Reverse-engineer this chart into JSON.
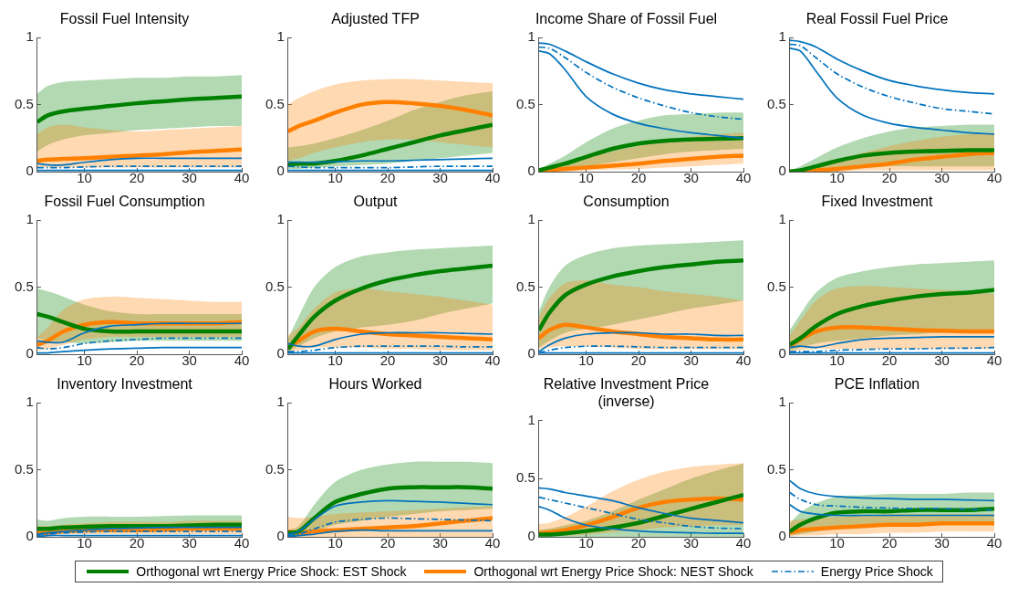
{
  "chart_data": [
    {
      "type": "line",
      "title": "Fossil Fuel Intensity",
      "x": [
        1,
        3,
        6,
        10,
        15,
        20,
        25,
        30,
        35,
        40
      ],
      "xlim": [
        1,
        40
      ],
      "xticks": [
        10,
        20,
        30,
        40
      ],
      "ylim": [
        0,
        1
      ],
      "yticks": [
        0,
        0.5,
        1
      ],
      "legend": "bottom",
      "series": [
        {
          "name": "Orthogonal wrt Energy Price Shock: EST Shock",
          "color": "#008000",
          "line_style": "solid",
          "values": [
            0.37,
            0.42,
            0.45,
            0.47,
            0.49,
            0.51,
            0.525,
            0.54,
            0.55,
            0.56
          ],
          "lower": [
            0.15,
            0.2,
            0.24,
            0.27,
            0.29,
            0.31,
            0.32,
            0.33,
            0.34,
            0.34
          ],
          "upper": [
            0.58,
            0.64,
            0.67,
            0.68,
            0.69,
            0.7,
            0.7,
            0.71,
            0.71,
            0.72
          ]
        },
        {
          "name": "Orthogonal wrt Energy Price Shock: NEST Shock",
          "color": "#ff8000",
          "line_style": "solid",
          "values": [
            0.08,
            0.09,
            0.095,
            0.1,
            0.11,
            0.12,
            0.13,
            0.145,
            0.155,
            0.165
          ],
          "lower": [
            0.03,
            0.03,
            0.03,
            0.03,
            0.03,
            0.03,
            0.03,
            0.03,
            0.03,
            0.03
          ],
          "upper": [
            0.28,
            0.33,
            0.35,
            0.33,
            0.31,
            0.3,
            0.31,
            0.32,
            0.33,
            0.34
          ]
        },
        {
          "name": "Energy Price Shock",
          "color": "#0072bd",
          "line_style": "dashed",
          "values": [
            0.03,
            0.03,
            0.03,
            0.035,
            0.04,
            0.04,
            0.04,
            0.04,
            0.04,
            0.04
          ]
        },
        {
          "color": "#0072bd",
          "line_style": "solid",
          "values": [
            0.01,
            0.01,
            0.01,
            0.01,
            0.01,
            0.01,
            0.01,
            0.01,
            0.01,
            0.01
          ]
        },
        {
          "color": "#0072bd",
          "line_style": "solid",
          "values": [
            0.06,
            0.05,
            0.05,
            0.07,
            0.09,
            0.1,
            0.1,
            0.1,
            0.1,
            0.1
          ]
        }
      ]
    },
    {
      "type": "line",
      "title": "Adjusted TFP",
      "x": [
        1,
        3,
        6,
        10,
        15,
        20,
        25,
        30,
        35,
        40
      ],
      "xlim": [
        1,
        40
      ],
      "xticks": [
        10,
        20,
        30,
        40
      ],
      "ylim": [
        0,
        1
      ],
      "yticks": [
        0,
        0.5,
        1
      ],
      "series": [
        {
          "color": "#008000",
          "line_style": "solid",
          "values": [
            0.05,
            0.06,
            0.06,
            0.08,
            0.12,
            0.17,
            0.22,
            0.27,
            0.31,
            0.35
          ],
          "lower": [
            0.02,
            0.02,
            0.03,
            0.04,
            0.05,
            0.06,
            0.08,
            0.1,
            0.12,
            0.14
          ],
          "upper": [
            0.18,
            0.19,
            0.21,
            0.25,
            0.31,
            0.38,
            0.46,
            0.52,
            0.57,
            0.6
          ]
        },
        {
          "color": "#ff8000",
          "line_style": "solid",
          "values": [
            0.3,
            0.34,
            0.38,
            0.44,
            0.5,
            0.52,
            0.51,
            0.49,
            0.46,
            0.42
          ],
          "lower": [
            0.08,
            0.1,
            0.14,
            0.18,
            0.22,
            0.24,
            0.24,
            0.22,
            0.2,
            0.18
          ],
          "upper": [
            0.5,
            0.55,
            0.6,
            0.65,
            0.68,
            0.69,
            0.69,
            0.68,
            0.67,
            0.66
          ]
        },
        {
          "color": "#0072bd",
          "line_style": "dashed",
          "values": [
            0.04,
            0.035,
            0.03,
            0.03,
            0.03,
            0.03,
            0.035,
            0.04,
            0.04,
            0.04
          ]
        },
        {
          "color": "#0072bd",
          "line_style": "solid",
          "values": [
            0.01,
            0.01,
            0.01,
            0.01,
            0.01,
            0.01,
            0.01,
            0.01,
            0.01,
            0.01
          ]
        },
        {
          "color": "#0072bd",
          "line_style": "solid",
          "values": [
            0.07,
            0.07,
            0.07,
            0.075,
            0.08,
            0.08,
            0.085,
            0.09,
            0.095,
            0.1
          ]
        }
      ]
    },
    {
      "type": "line",
      "title": "Income Share of Fossil Fuel",
      "x": [
        1,
        3,
        6,
        10,
        15,
        20,
        25,
        30,
        35,
        40
      ],
      "xlim": [
        1,
        40
      ],
      "xticks": [
        10,
        20,
        30,
        40
      ],
      "ylim": [
        0,
        1
      ],
      "yticks": [
        0,
        0.5,
        1
      ],
      "series": [
        {
          "color": "#008000",
          "line_style": "solid",
          "values": [
            0.01,
            0.03,
            0.06,
            0.11,
            0.17,
            0.21,
            0.23,
            0.24,
            0.245,
            0.25
          ],
          "lower": [
            0,
            0.01,
            0.02,
            0.04,
            0.07,
            0.1,
            0.13,
            0.15,
            0.16,
            0.17
          ],
          "upper": [
            0.02,
            0.06,
            0.12,
            0.22,
            0.32,
            0.38,
            0.42,
            0.43,
            0.44,
            0.44
          ]
        },
        {
          "color": "#ff8000",
          "line_style": "solid",
          "values": [
            0,
            0.01,
            0.02,
            0.03,
            0.045,
            0.06,
            0.08,
            0.095,
            0.11,
            0.12
          ],
          "lower": [
            0,
            0,
            0,
            0.01,
            0.015,
            0.02,
            0.03,
            0.04,
            0.05,
            0.06
          ],
          "upper": [
            0.01,
            0.03,
            0.06,
            0.1,
            0.15,
            0.19,
            0.23,
            0.26,
            0.28,
            0.29
          ]
        },
        {
          "color": "#0072bd",
          "line_style": "dashed",
          "values": [
            0.93,
            0.92,
            0.85,
            0.74,
            0.63,
            0.55,
            0.49,
            0.44,
            0.41,
            0.39
          ]
        },
        {
          "color": "#0072bd",
          "line_style": "solid",
          "values": [
            0.9,
            0.88,
            0.76,
            0.56,
            0.43,
            0.36,
            0.32,
            0.29,
            0.27,
            0.25
          ]
        },
        {
          "color": "#0072bd",
          "line_style": "solid",
          "values": [
            0.96,
            0.95,
            0.9,
            0.82,
            0.73,
            0.66,
            0.61,
            0.58,
            0.56,
            0.54
          ]
        }
      ]
    },
    {
      "type": "line",
      "title": "Real Fossil Fuel Price",
      "x": [
        1,
        3,
        6,
        10,
        15,
        20,
        25,
        30,
        35,
        40
      ],
      "xlim": [
        1,
        40
      ],
      "xticks": [
        10,
        20,
        30,
        40
      ],
      "ylim": [
        0,
        1
      ],
      "yticks": [
        0,
        0.5,
        1
      ],
      "series": [
        {
          "color": "#008000",
          "line_style": "solid",
          "values": [
            0,
            0.01,
            0.04,
            0.08,
            0.12,
            0.14,
            0.15,
            0.155,
            0.16,
            0.16
          ],
          "lower": [
            0,
            0,
            0.01,
            0.02,
            0.03,
            0.04,
            0.04,
            0.04,
            0.04,
            0.04
          ],
          "upper": [
            0.01,
            0.04,
            0.1,
            0.18,
            0.25,
            0.3,
            0.33,
            0.34,
            0.35,
            0.35
          ]
        },
        {
          "color": "#ff8000",
          "line_style": "solid",
          "values": [
            0,
            0.005,
            0.01,
            0.02,
            0.04,
            0.06,
            0.09,
            0.11,
            0.13,
            0.14
          ],
          "lower": [
            0,
            0,
            0,
            0,
            0.01,
            0.01,
            0.01,
            0.01,
            0.01,
            0.01
          ],
          "upper": [
            0.01,
            0.02,
            0.05,
            0.09,
            0.14,
            0.19,
            0.23,
            0.26,
            0.28,
            0.29
          ]
        },
        {
          "color": "#0072bd",
          "line_style": "dashed",
          "values": [
            0.95,
            0.94,
            0.85,
            0.73,
            0.63,
            0.56,
            0.51,
            0.47,
            0.45,
            0.43
          ]
        },
        {
          "color": "#0072bd",
          "line_style": "solid",
          "values": [
            0.92,
            0.9,
            0.75,
            0.55,
            0.42,
            0.36,
            0.33,
            0.31,
            0.29,
            0.28
          ]
        },
        {
          "color": "#0072bd",
          "line_style": "solid",
          "values": [
            0.98,
            0.97,
            0.93,
            0.84,
            0.75,
            0.68,
            0.64,
            0.61,
            0.59,
            0.58
          ]
        }
      ]
    },
    {
      "type": "line",
      "title": "Fossil Fuel Consumption",
      "x": [
        1,
        3,
        6,
        10,
        15,
        20,
        25,
        30,
        35,
        40
      ],
      "xlim": [
        1,
        40
      ],
      "xticks": [
        10,
        20,
        30,
        40
      ],
      "ylim": [
        0,
        1
      ],
      "yticks": [
        0,
        0.5,
        1
      ],
      "series": [
        {
          "color": "#008000",
          "line_style": "solid",
          "values": [
            0.3,
            0.28,
            0.24,
            0.19,
            0.17,
            0.17,
            0.17,
            0.17,
            0.17,
            0.17
          ],
          "lower": [
            0.12,
            0.1,
            0.09,
            0.08,
            0.09,
            0.1,
            0.1,
            0.1,
            0.1,
            0.1
          ],
          "upper": [
            0.49,
            0.47,
            0.43,
            0.37,
            0.32,
            0.3,
            0.3,
            0.3,
            0.3,
            0.3
          ]
        },
        {
          "color": "#ff8000",
          "line_style": "solid",
          "values": [
            0.07,
            0.1,
            0.17,
            0.22,
            0.24,
            0.23,
            0.23,
            0.23,
            0.23,
            0.24
          ],
          "lower": [
            0.03,
            0.04,
            0.07,
            0.11,
            0.13,
            0.13,
            0.13,
            0.13,
            0.13,
            0.13
          ],
          "upper": [
            0.13,
            0.2,
            0.33,
            0.41,
            0.43,
            0.42,
            0.41,
            0.4,
            0.39,
            0.39
          ]
        },
        {
          "color": "#0072bd",
          "line_style": "dashed",
          "values": [
            0.05,
            0.04,
            0.05,
            0.08,
            0.1,
            0.11,
            0.12,
            0.12,
            0.12,
            0.12
          ]
        },
        {
          "color": "#0072bd",
          "line_style": "solid",
          "values": [
            0.01,
            0.01,
            0.02,
            0.03,
            0.04,
            0.045,
            0.05,
            0.05,
            0.05,
            0.05
          ]
        },
        {
          "color": "#0072bd",
          "line_style": "solid",
          "values": [
            0.1,
            0.09,
            0.09,
            0.16,
            0.21,
            0.22,
            0.23,
            0.23,
            0.23,
            0.23
          ]
        }
      ]
    },
    {
      "type": "line",
      "title": "Output",
      "x": [
        1,
        3,
        6,
        10,
        15,
        20,
        25,
        30,
        35,
        40
      ],
      "xlim": [
        1,
        40
      ],
      "xticks": [
        10,
        20,
        30,
        40
      ],
      "ylim": [
        0,
        1
      ],
      "yticks": [
        0,
        0.5,
        1
      ],
      "series": [
        {
          "color": "#008000",
          "line_style": "solid",
          "values": [
            0.04,
            0.14,
            0.28,
            0.4,
            0.49,
            0.55,
            0.59,
            0.62,
            0.64,
            0.66
          ],
          "lower": [
            0.02,
            0.06,
            0.12,
            0.17,
            0.2,
            0.22,
            0.25,
            0.3,
            0.34,
            0.38
          ],
          "upper": [
            0.12,
            0.28,
            0.5,
            0.65,
            0.73,
            0.76,
            0.78,
            0.79,
            0.8,
            0.81
          ]
        },
        {
          "color": "#ff8000",
          "line_style": "solid",
          "values": [
            0.05,
            0.1,
            0.17,
            0.19,
            0.17,
            0.15,
            0.14,
            0.13,
            0.12,
            0.11
          ],
          "lower": [
            0.02,
            0.03,
            0.05,
            0.05,
            0.05,
            0.04,
            0.04,
            0.03,
            0.03,
            0.03
          ],
          "upper": [
            0.14,
            0.2,
            0.34,
            0.46,
            0.49,
            0.47,
            0.45,
            0.43,
            0.4,
            0.37
          ]
        },
        {
          "color": "#0072bd",
          "line_style": "dashed",
          "values": [
            0.02,
            0.02,
            0.03,
            0.05,
            0.06,
            0.06,
            0.06,
            0.06,
            0.055,
            0.055
          ]
        },
        {
          "color": "#0072bd",
          "line_style": "solid",
          "values": [
            0.01,
            0.01,
            0.01,
            0.01,
            0.01,
            0.01,
            0.01,
            0.01,
            0.01,
            0.01
          ]
        },
        {
          "color": "#0072bd",
          "line_style": "solid",
          "values": [
            0.08,
            0.06,
            0.06,
            0.11,
            0.15,
            0.16,
            0.16,
            0.16,
            0.155,
            0.15
          ]
        }
      ]
    },
    {
      "type": "line",
      "title": "Consumption",
      "x": [
        1,
        3,
        6,
        10,
        15,
        20,
        25,
        30,
        35,
        40
      ],
      "xlim": [
        1,
        40
      ],
      "xticks": [
        10,
        20,
        30,
        40
      ],
      "ylim": [
        0,
        1
      ],
      "yticks": [
        0,
        0.5,
        1
      ],
      "series": [
        {
          "color": "#008000",
          "line_style": "solid",
          "values": [
            0.18,
            0.31,
            0.44,
            0.52,
            0.58,
            0.62,
            0.65,
            0.67,
            0.69,
            0.7
          ],
          "lower": [
            0.05,
            0.1,
            0.16,
            0.19,
            0.22,
            0.26,
            0.3,
            0.34,
            0.37,
            0.4
          ],
          "upper": [
            0.32,
            0.5,
            0.66,
            0.74,
            0.79,
            0.81,
            0.82,
            0.83,
            0.84,
            0.85
          ]
        },
        {
          "color": "#ff8000",
          "line_style": "solid",
          "values": [
            0.12,
            0.18,
            0.22,
            0.2,
            0.17,
            0.15,
            0.13,
            0.12,
            0.11,
            0.11
          ],
          "lower": [
            0.04,
            0.05,
            0.06,
            0.06,
            0.05,
            0.04,
            0.04,
            0.04,
            0.04,
            0.04
          ],
          "upper": [
            0.28,
            0.42,
            0.53,
            0.55,
            0.52,
            0.5,
            0.47,
            0.45,
            0.43,
            0.4
          ]
        },
        {
          "color": "#0072bd",
          "line_style": "dashed",
          "values": [
            0.01,
            0.03,
            0.05,
            0.06,
            0.06,
            0.055,
            0.05,
            0.05,
            0.05,
            0.05
          ]
        },
        {
          "color": "#0072bd",
          "line_style": "solid",
          "values": [
            0.01,
            0.01,
            0.01,
            0.01,
            0.01,
            0.01,
            0.01,
            0.01,
            0.01,
            0.01
          ]
        },
        {
          "color": "#0072bd",
          "line_style": "solid",
          "values": [
            0.02,
            0.07,
            0.12,
            0.15,
            0.16,
            0.16,
            0.15,
            0.15,
            0.14,
            0.14
          ]
        }
      ]
    },
    {
      "type": "line",
      "title": "Fixed Investment",
      "x": [
        1,
        3,
        6,
        10,
        15,
        20,
        25,
        30,
        35,
        40
      ],
      "xlim": [
        1,
        40
      ],
      "xticks": [
        10,
        20,
        30,
        40
      ],
      "ylim": [
        0,
        1
      ],
      "yticks": [
        0,
        0.5,
        1
      ],
      "series": [
        {
          "color": "#008000",
          "line_style": "solid",
          "values": [
            0.07,
            0.12,
            0.21,
            0.3,
            0.36,
            0.4,
            0.43,
            0.45,
            0.46,
            0.48
          ],
          "lower": [
            0.03,
            0.05,
            0.08,
            0.1,
            0.12,
            0.14,
            0.15,
            0.16,
            0.16,
            0.17
          ],
          "upper": [
            0.18,
            0.3,
            0.46,
            0.57,
            0.62,
            0.65,
            0.67,
            0.68,
            0.69,
            0.7
          ]
        },
        {
          "color": "#ff8000",
          "line_style": "solid",
          "values": [
            0.06,
            0.11,
            0.17,
            0.2,
            0.2,
            0.19,
            0.18,
            0.175,
            0.17,
            0.17
          ],
          "lower": [
            0.02,
            0.03,
            0.04,
            0.04,
            0.04,
            0.04,
            0.04,
            0.04,
            0.04,
            0.04
          ],
          "upper": [
            0.14,
            0.25,
            0.4,
            0.49,
            0.51,
            0.5,
            0.49,
            0.48,
            0.47,
            0.45
          ]
        },
        {
          "color": "#0072bd",
          "line_style": "dashed",
          "values": [
            0.02,
            0.02,
            0.02,
            0.03,
            0.035,
            0.04,
            0.04,
            0.045,
            0.045,
            0.05
          ]
        },
        {
          "color": "#0072bd",
          "line_style": "solid",
          "values": [
            0.01,
            0.01,
            0.01,
            0.01,
            0.01,
            0.01,
            0.01,
            0.01,
            0.01,
            0.01
          ]
        },
        {
          "color": "#0072bd",
          "line_style": "solid",
          "values": [
            0.05,
            0.06,
            0.05,
            0.08,
            0.11,
            0.12,
            0.125,
            0.13,
            0.13,
            0.13
          ]
        }
      ]
    },
    {
      "type": "line",
      "title": "Inventory Investment",
      "x": [
        1,
        3,
        6,
        10,
        15,
        20,
        25,
        30,
        35,
        40
      ],
      "xlim": [
        1,
        40
      ],
      "xticks": [
        10,
        20,
        30,
        40
      ],
      "ylim": [
        0,
        1
      ],
      "yticks": [
        0,
        0.5,
        1
      ],
      "series": [
        {
          "color": "#008000",
          "line_style": "solid",
          "values": [
            0.06,
            0.06,
            0.07,
            0.075,
            0.08,
            0.08,
            0.08,
            0.085,
            0.09,
            0.09
          ],
          "lower": [
            0.02,
            0.03,
            0.04,
            0.04,
            0.05,
            0.05,
            0.05,
            0.05,
            0.05,
            0.05
          ],
          "upper": [
            0.13,
            0.12,
            0.14,
            0.15,
            0.15,
            0.15,
            0.155,
            0.16,
            0.16,
            0.16
          ]
        },
        {
          "color": "#ff8000",
          "line_style": "solid",
          "values": [
            0.03,
            0.03,
            0.04,
            0.05,
            0.05,
            0.05,
            0.055,
            0.06,
            0.06,
            0.06
          ],
          "lower": [
            0.01,
            0.01,
            0.02,
            0.02,
            0.02,
            0.02,
            0.02,
            0.02,
            0.02,
            0.02
          ],
          "upper": [
            0.08,
            0.08,
            0.09,
            0.1,
            0.11,
            0.11,
            0.11,
            0.12,
            0.12,
            0.12
          ]
        },
        {
          "color": "#0072bd",
          "line_style": "dashed",
          "values": [
            0.01,
            0.02,
            0.03,
            0.035,
            0.04,
            0.04,
            0.04,
            0.04,
            0.04,
            0.04
          ]
        },
        {
          "color": "#0072bd",
          "line_style": "solid",
          "values": [
            0,
            0.01,
            0.01,
            0.01,
            0.01,
            0.01,
            0.01,
            0.01,
            0.01,
            0.01
          ]
        },
        {
          "color": "#0072bd",
          "line_style": "solid",
          "values": [
            0.02,
            0.03,
            0.04,
            0.05,
            0.06,
            0.065,
            0.07,
            0.07,
            0.07,
            0.07
          ]
        }
      ]
    },
    {
      "type": "line",
      "title": "Hours Worked",
      "x": [
        1,
        3,
        6,
        10,
        15,
        20,
        25,
        30,
        35,
        40
      ],
      "xlim": [
        1,
        40
      ],
      "xticks": [
        10,
        20,
        30,
        40
      ],
      "ylim": [
        0,
        1
      ],
      "yticks": [
        0,
        0.5,
        1
      ],
      "series": [
        {
          "color": "#008000",
          "line_style": "solid",
          "values": [
            0.03,
            0.04,
            0.14,
            0.26,
            0.32,
            0.36,
            0.37,
            0.37,
            0.37,
            0.36
          ],
          "lower": [
            0.01,
            0.01,
            0.04,
            0.09,
            0.12,
            0.15,
            0.17,
            0.19,
            0.2,
            0.21
          ],
          "upper": [
            0.05,
            0.08,
            0.24,
            0.41,
            0.5,
            0.54,
            0.56,
            0.56,
            0.56,
            0.55
          ]
        },
        {
          "color": "#ff8000",
          "line_style": "solid",
          "values": [
            0.04,
            0.03,
            0.04,
            0.05,
            0.06,
            0.07,
            0.08,
            0.1,
            0.12,
            0.14
          ],
          "lower": [
            0,
            0,
            0,
            0,
            0,
            0,
            0,
            0,
            0,
            0
          ],
          "upper": [
            0.15,
            0.14,
            0.15,
            0.17,
            0.18,
            0.19,
            0.2,
            0.21,
            0.22,
            0.23
          ]
        },
        {
          "color": "#0072bd",
          "line_style": "dashed",
          "values": [
            0.01,
            0.02,
            0.06,
            0.11,
            0.13,
            0.14,
            0.135,
            0.13,
            0.125,
            0.12
          ]
        },
        {
          "color": "#0072bd",
          "line_style": "solid",
          "values": [
            0,
            0.01,
            0.02,
            0.04,
            0.05,
            0.045,
            0.045,
            0.045,
            0.045,
            0.045
          ]
        },
        {
          "color": "#0072bd",
          "line_style": "solid",
          "values": [
            0.02,
            0.04,
            0.13,
            0.23,
            0.26,
            0.27,
            0.265,
            0.26,
            0.25,
            0.24
          ]
        }
      ]
    },
    {
      "type": "line",
      "title": "Relative Investment Price (inverse)",
      "x": [
        1,
        3,
        6,
        10,
        15,
        20,
        25,
        30,
        35,
        40
      ],
      "xlim": [
        1,
        40
      ],
      "xticks": [
        10,
        20,
        30,
        40
      ],
      "ylim": [
        0,
        1
      ],
      "yticks": [
        0,
        0.5,
        1
      ],
      "series": [
        {
          "color": "#008000",
          "line_style": "solid",
          "values": [
            0.02,
            0.02,
            0.03,
            0.05,
            0.08,
            0.12,
            0.18,
            0.24,
            0.3,
            0.36
          ],
          "lower": [
            0,
            0,
            0,
            0,
            0,
            0,
            0,
            0,
            0,
            0
          ],
          "upper": [
            0.06,
            0.07,
            0.1,
            0.14,
            0.22,
            0.32,
            0.41,
            0.5,
            0.57,
            0.63
          ]
        },
        {
          "color": "#ff8000",
          "line_style": "solid",
          "values": [
            0.03,
            0.04,
            0.06,
            0.1,
            0.17,
            0.25,
            0.3,
            0.32,
            0.33,
            0.32
          ],
          "lower": [
            0.01,
            0.01,
            0.01,
            0.02,
            0.04,
            0.06,
            0.08,
            0.09,
            0.1,
            0.1
          ],
          "upper": [
            0.11,
            0.12,
            0.17,
            0.26,
            0.39,
            0.49,
            0.56,
            0.6,
            0.62,
            0.63
          ]
        },
        {
          "color": "#0072bd",
          "line_style": "dashed",
          "values": [
            0.34,
            0.32,
            0.29,
            0.25,
            0.2,
            0.15,
            0.12,
            0.09,
            0.075,
            0.07
          ]
        },
        {
          "color": "#0072bd",
          "line_style": "solid",
          "values": [
            0.26,
            0.23,
            0.16,
            0.1,
            0.07,
            0.05,
            0.04,
            0.035,
            0.03,
            0.03
          ]
        },
        {
          "color": "#0072bd",
          "line_style": "solid",
          "values": [
            0.42,
            0.41,
            0.38,
            0.35,
            0.31,
            0.25,
            0.2,
            0.16,
            0.14,
            0.12
          ]
        }
      ]
    },
    {
      "type": "line",
      "title": "PCE Inflation",
      "x": [
        1,
        3,
        6,
        10,
        15,
        20,
        25,
        30,
        35,
        40
      ],
      "xlim": [
        1,
        40
      ],
      "xticks": [
        10,
        20,
        30,
        40
      ],
      "ylim": [
        0,
        1
      ],
      "yticks": [
        0,
        0.5,
        1
      ],
      "series": [
        {
          "color": "#008000",
          "line_style": "solid",
          "values": [
            0.04,
            0.09,
            0.14,
            0.18,
            0.19,
            0.19,
            0.2,
            0.2,
            0.2,
            0.21
          ],
          "lower": [
            0.01,
            0.02,
            0.04,
            0.06,
            0.08,
            0.09,
            0.1,
            0.11,
            0.11,
            0.11
          ],
          "upper": [
            0.1,
            0.18,
            0.25,
            0.3,
            0.31,
            0.32,
            0.32,
            0.32,
            0.33,
            0.33
          ]
        },
        {
          "color": "#ff8000",
          "line_style": "solid",
          "values": [
            0.03,
            0.05,
            0.06,
            0.07,
            0.08,
            0.09,
            0.09,
            0.1,
            0.1,
            0.1
          ],
          "lower": [
            0,
            0.01,
            0.01,
            0.02,
            0.02,
            0.03,
            0.03,
            0.04,
            0.04,
            0.04
          ],
          "upper": [
            0.12,
            0.13,
            0.14,
            0.15,
            0.16,
            0.17,
            0.17,
            0.17,
            0.17,
            0.17
          ]
        },
        {
          "color": "#0072bd",
          "line_style": "dashed",
          "values": [
            0.33,
            0.28,
            0.24,
            0.23,
            0.22,
            0.215,
            0.21,
            0.21,
            0.205,
            0.2
          ]
        },
        {
          "color": "#0072bd",
          "line_style": "solid",
          "values": [
            0.24,
            0.19,
            0.17,
            0.16,
            0.16,
            0.16,
            0.16,
            0.16,
            0.16,
            0.16
          ]
        },
        {
          "color": "#0072bd",
          "line_style": "solid",
          "values": [
            0.42,
            0.36,
            0.32,
            0.3,
            0.29,
            0.285,
            0.28,
            0.28,
            0.275,
            0.27
          ]
        }
      ]
    }
  ]
}
